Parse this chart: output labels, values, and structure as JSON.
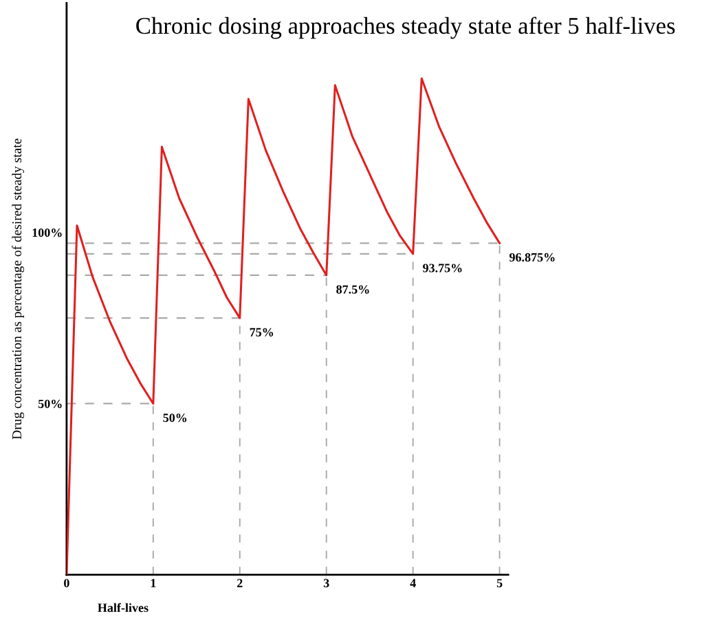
{
  "chart_data": {
    "type": "line",
    "title": "Chronic dosing approaches steady state after 5 half-lives",
    "xlabel": "Half-lives",
    "ylabel": "Drug concentration as percentage of desired steady state",
    "series": [
      {
        "color": "#e02020",
        "x": [
          0,
          0.12,
          0.3,
          0.5,
          0.7,
          0.85,
          1,
          1.1,
          1.3,
          1.5,
          1.7,
          1.85,
          2,
          2.1,
          2.3,
          2.5,
          2.7,
          2.85,
          3,
          3.1,
          3.3,
          3.5,
          3.7,
          3.85,
          4,
          4.1,
          4.3,
          4.5,
          4.7,
          4.85,
          5
        ],
        "values": [
          0,
          102,
          87,
          74,
          63,
          56,
          50,
          125,
          110,
          99,
          89,
          81,
          75,
          139,
          124,
          112,
          101,
          94,
          87.5,
          143,
          128,
          117,
          106,
          99,
          93.75,
          145,
          131,
          120,
          110,
          103,
          96.875
        ]
      }
    ],
    "xlim": [
      0,
      5.1
    ],
    "ylim": [
      0,
      167
    ],
    "xticks": [
      0,
      1,
      2,
      3,
      4,
      5
    ],
    "yticks": [
      {
        "value": 50,
        "label": "50%"
      },
      {
        "value": 100,
        "label": "100%"
      }
    ],
    "annotations": [
      {
        "text": "50%",
        "x": 1,
        "y": 50
      },
      {
        "text": "75%",
        "x": 2,
        "y": 75
      },
      {
        "text": "87.5%",
        "x": 3,
        "y": 87.5
      },
      {
        "text": "93.75%",
        "x": 4,
        "y": 93.75
      },
      {
        "text": "96.875%",
        "x": 5,
        "y": 96.875
      }
    ],
    "ref_lines": [
      {
        "axis": "y",
        "value": 50,
        "color": "#aaaaaa",
        "line_style": "dashed"
      },
      {
        "axis": "y",
        "value": 75,
        "color": "#aaaaaa",
        "line_style": "dashed"
      },
      {
        "axis": "y",
        "value": 87.5,
        "color": "#aaaaaa",
        "line_style": "dashed"
      },
      {
        "axis": "y",
        "value": 93.75,
        "color": "#aaaaaa",
        "line_style": "dashed"
      },
      {
        "axis": "y",
        "value": 96.875,
        "color": "#aaaaaa",
        "line_style": "dashed"
      },
      {
        "axis": "x",
        "value": 1,
        "color": "#aaaaaa",
        "line_style": "dashed"
      },
      {
        "axis": "x",
        "value": 2,
        "color": "#aaaaaa",
        "line_style": "dashed"
      },
      {
        "axis": "x",
        "value": 3,
        "color": "#aaaaaa",
        "line_style": "dashed"
      },
      {
        "axis": "x",
        "value": 4,
        "color": "#aaaaaa",
        "line_style": "dashed"
      },
      {
        "axis": "x",
        "value": 5,
        "color": "#aaaaaa",
        "line_style": "dashed"
      }
    ],
    "grid": false,
    "legend": false,
    "marker": "none",
    "line_style": "solid"
  }
}
